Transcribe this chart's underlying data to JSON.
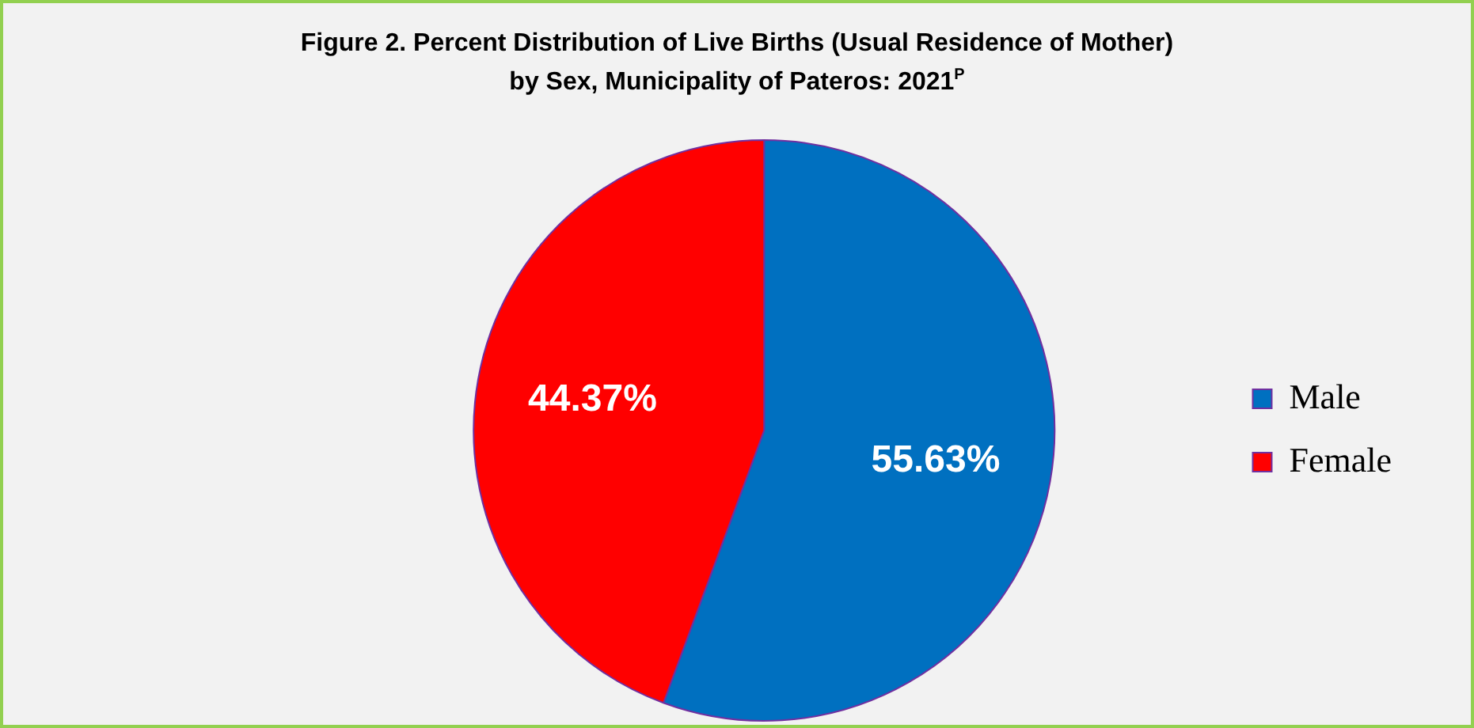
{
  "chart_data": {
    "type": "pie",
    "title": "Figure 2.  Percent Distribution of Live Births (Usual Residence of Mother)\nby Sex, Municipality of Pateros: 2021$^{P}$",
    "categories": [
      "Male",
      "Female"
    ],
    "values": [
      55.63,
      44.37
    ],
    "value_labels": [
      "55.63%",
      "44.37%"
    ],
    "colors": [
      "#0070c0",
      "#ff0000"
    ],
    "legend": "right"
  }
}
